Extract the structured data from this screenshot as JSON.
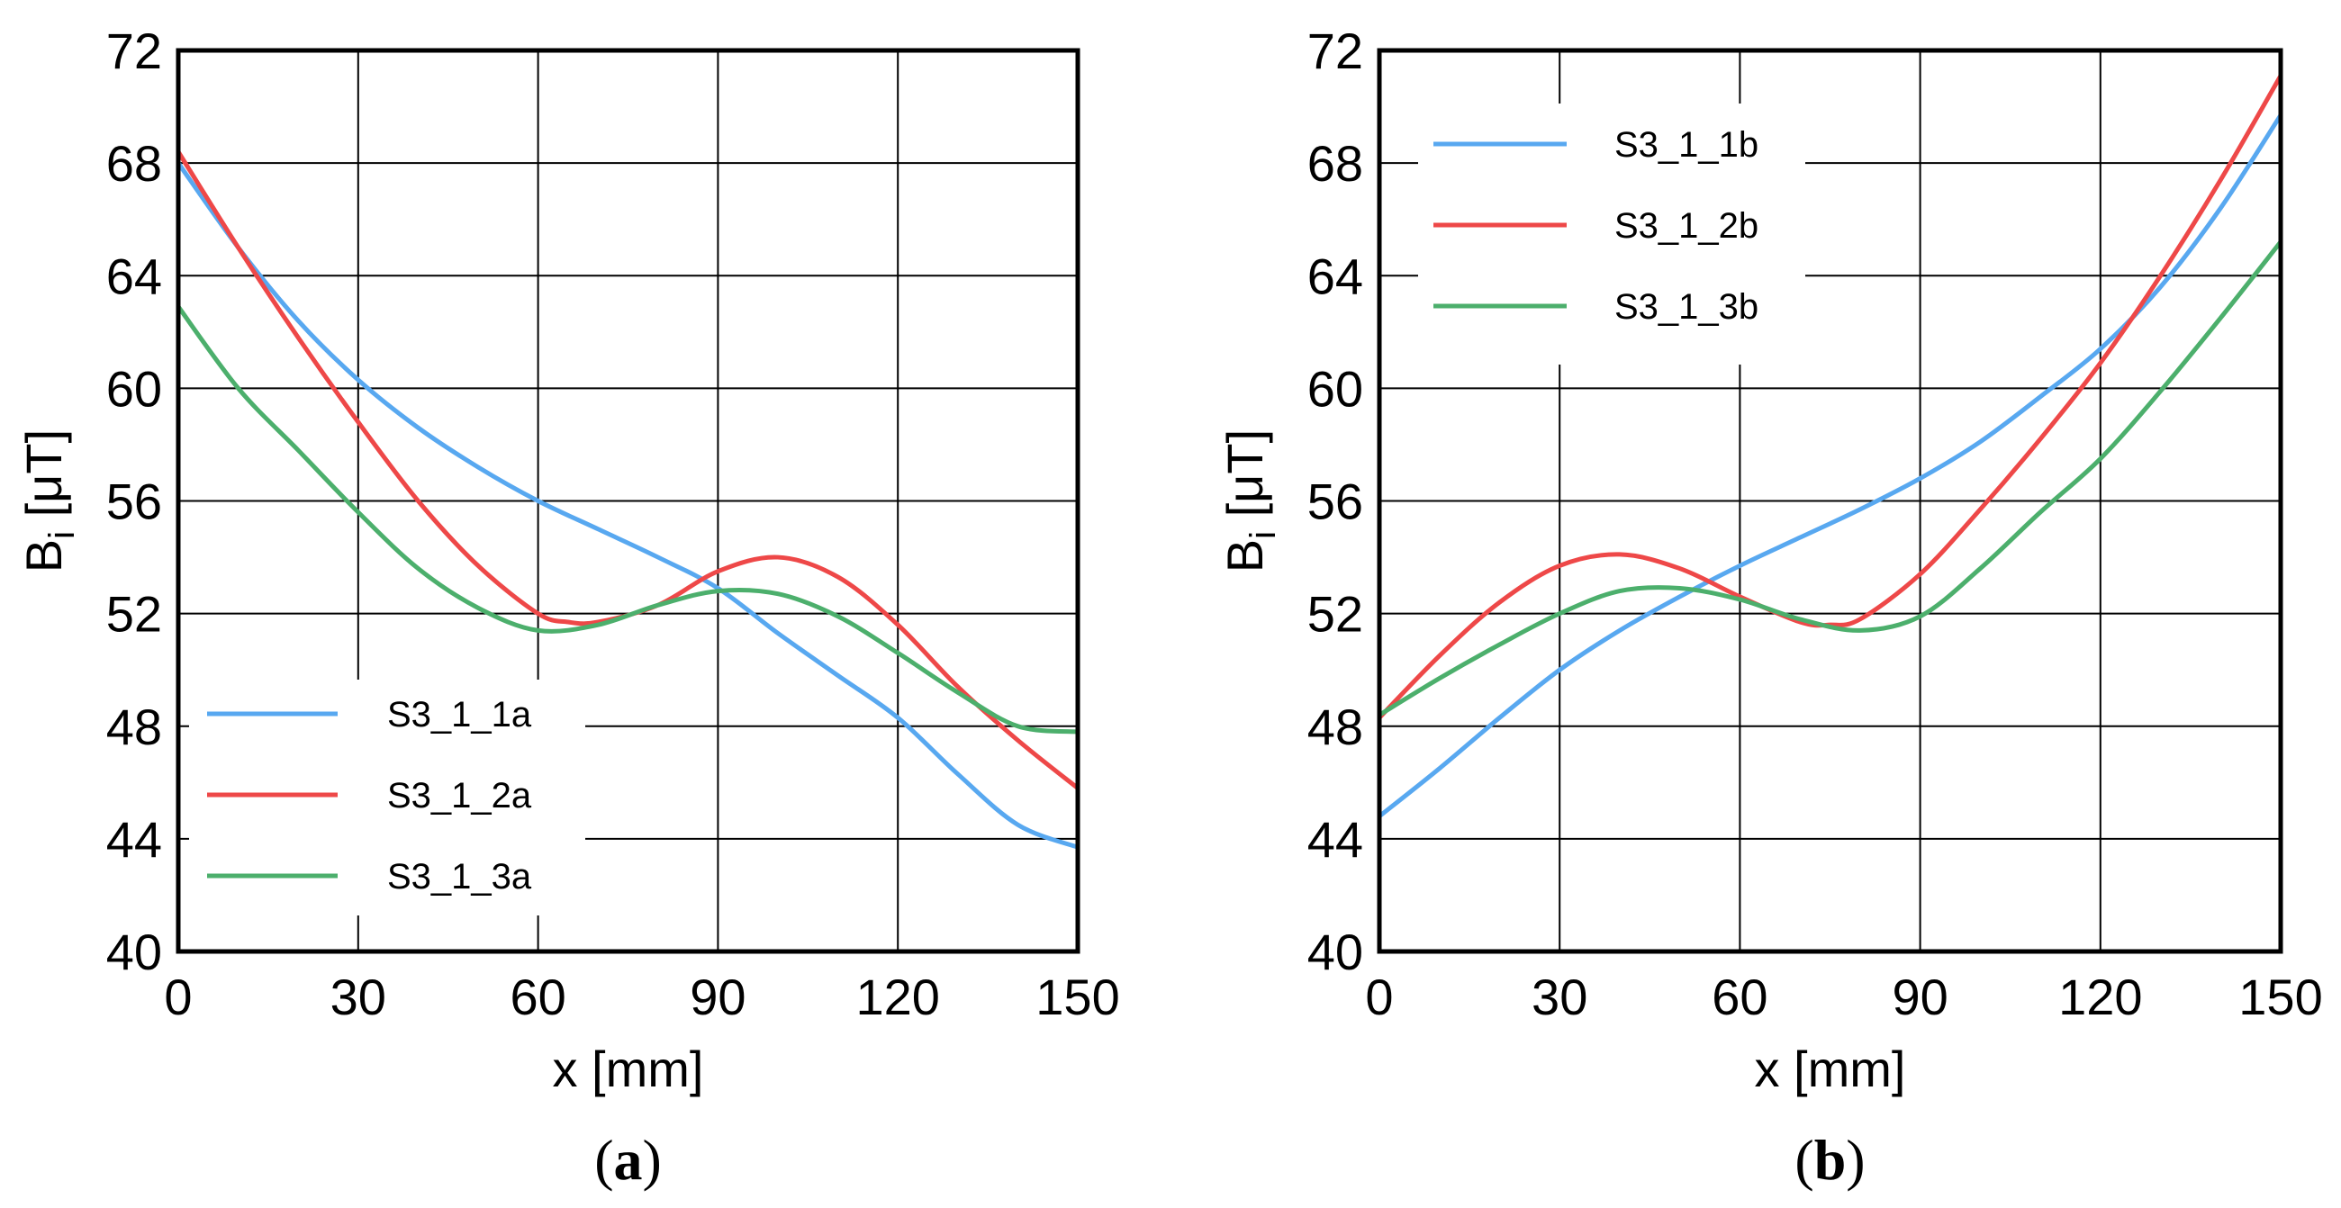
{
  "chart_data": [
    {
      "type": "line",
      "panel": "a",
      "caption": {
        "open": "(",
        "letter": "a",
        "close": ")"
      },
      "xlabel": "x [mm]",
      "ylabel": {
        "main": "B",
        "sub": "i",
        "unit": "[μT]"
      },
      "xlim": [
        0,
        150
      ],
      "ylim": [
        40,
        72
      ],
      "xticks": [
        0,
        30,
        60,
        90,
        120,
        150
      ],
      "yticks": [
        40,
        44,
        48,
        52,
        56,
        60,
        64,
        68,
        72
      ],
      "grid": true,
      "legend_position": "bottom-left",
      "series": [
        {
          "name": "S3_1_1a",
          "color": "#58a8f0",
          "x": [
            0,
            10,
            20,
            30,
            40,
            50,
            60,
            70,
            80,
            90,
            100,
            110,
            120,
            130,
            140,
            150
          ],
          "y": [
            68,
            65,
            62.4,
            60.3,
            58.6,
            57.2,
            56.0,
            55.0,
            54.0,
            52.9,
            51.3,
            49.8,
            48.3,
            46.3,
            44.5,
            43.7
          ]
        },
        {
          "name": "S3_1_2a",
          "color": "#ee4848",
          "x": [
            0,
            10,
            20,
            30,
            40,
            50,
            60,
            65,
            70,
            80,
            90,
            100,
            110,
            120,
            130,
            140,
            150
          ],
          "y": [
            68.4,
            65,
            61.8,
            58.8,
            56.0,
            53.7,
            52.0,
            51.7,
            51.7,
            52.3,
            53.5,
            54.0,
            53.3,
            51.6,
            49.4,
            47.5,
            45.8
          ]
        },
        {
          "name": "S3_1_3a",
          "color": "#4caf6c",
          "x": [
            0,
            10,
            20,
            30,
            40,
            50,
            60,
            70,
            80,
            90,
            100,
            110,
            120,
            130,
            140,
            150
          ],
          "y": [
            62.9,
            60,
            57.8,
            55.6,
            53.6,
            52.2,
            51.4,
            51.6,
            52.3,
            52.8,
            52.7,
            51.9,
            50.6,
            49.2,
            48.0,
            47.8
          ]
        }
      ]
    },
    {
      "type": "line",
      "panel": "b",
      "caption": {
        "open": "(",
        "letter": "b",
        "close": ")"
      },
      "xlabel": "x [mm]",
      "ylabel": {
        "main": "B",
        "sub": "i",
        "unit": "[μT]"
      },
      "xlim": [
        0,
        150
      ],
      "ylim": [
        40,
        72
      ],
      "xticks": [
        0,
        30,
        60,
        90,
        120,
        150
      ],
      "yticks": [
        40,
        44,
        48,
        52,
        56,
        60,
        64,
        68,
        72
      ],
      "grid": true,
      "legend_position": "top-left",
      "series": [
        {
          "name": "S3_1_1b",
          "color": "#58a8f0",
          "x": [
            0,
            10,
            20,
            30,
            40,
            50,
            60,
            70,
            80,
            90,
            100,
            110,
            120,
            130,
            140,
            150
          ],
          "y": [
            44.8,
            46.5,
            48.3,
            50,
            51.4,
            52.6,
            53.7,
            54.7,
            55.7,
            56.8,
            58.1,
            59.7,
            61.4,
            63.6,
            66.4,
            69.7
          ]
        },
        {
          "name": "S3_1_2b",
          "color": "#ee4848",
          "x": [
            0,
            10,
            20,
            30,
            40,
            50,
            60,
            70,
            75,
            80,
            90,
            100,
            110,
            120,
            130,
            140,
            150
          ],
          "y": [
            48.3,
            50.5,
            52.4,
            53.7,
            54.1,
            53.6,
            52.6,
            51.7,
            51.6,
            51.8,
            53.4,
            55.7,
            58.2,
            60.9,
            64.0,
            67.4,
            71.1
          ]
        },
        {
          "name": "S3_1_3b",
          "color": "#4caf6c",
          "x": [
            0,
            10,
            20,
            30,
            40,
            50,
            60,
            70,
            80,
            90,
            100,
            110,
            120,
            130,
            140,
            150
          ],
          "y": [
            48.4,
            49.7,
            50.9,
            52.0,
            52.8,
            52.9,
            52.5,
            51.8,
            51.4,
            51.9,
            53.6,
            55.6,
            57.5,
            59.9,
            62.5,
            65.2
          ]
        }
      ]
    }
  ]
}
